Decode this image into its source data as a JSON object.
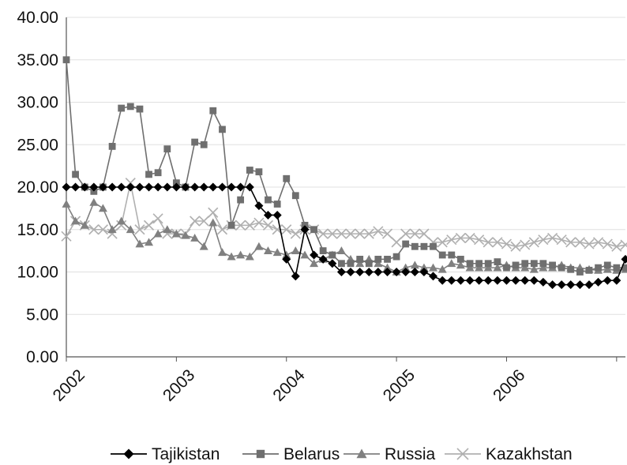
{
  "chart_data": {
    "type": "line",
    "title": "",
    "xlabel": "",
    "ylabel": "",
    "ylim": [
      0,
      40
    ],
    "y_ticks": [
      "0.00",
      "5.00",
      "10.00",
      "15.00",
      "20.00",
      "25.00",
      "30.00",
      "35.00",
      "40.00"
    ],
    "x_ticks": [
      "2002",
      "2003",
      "2004",
      "2005",
      "2006"
    ],
    "xlim": [
      2002.0,
      2007.08
    ],
    "grid": "horizontal",
    "legend_position": "bottom",
    "series": [
      {
        "name": "Tajikistan",
        "color": "#000000",
        "marker": "diamond",
        "x": [
          2002.0,
          2002.083,
          2002.167,
          2002.25,
          2002.333,
          2002.417,
          2002.5,
          2002.583,
          2002.667,
          2002.75,
          2002.833,
          2002.917,
          2003.0,
          2003.083,
          2003.167,
          2003.25,
          2003.333,
          2003.417,
          2003.5,
          2003.583,
          2003.667,
          2003.75,
          2003.833,
          2003.917,
          2004.0,
          2004.083,
          2004.167,
          2004.25,
          2004.333,
          2004.417,
          2004.5,
          2004.583,
          2004.667,
          2004.75,
          2004.833,
          2004.917,
          2005.0,
          2005.083,
          2005.167,
          2005.25,
          2005.333,
          2005.417,
          2005.5,
          2005.583,
          2005.667,
          2005.75,
          2005.833,
          2005.917,
          2006.0,
          2006.083,
          2006.167,
          2006.25,
          2006.333,
          2006.417,
          2006.5,
          2006.583,
          2006.667,
          2006.75,
          2006.833,
          2006.917,
          2007.0,
          2007.08
        ],
        "values": [
          20,
          20,
          20,
          20,
          20,
          20,
          20,
          20,
          20,
          20,
          20,
          20,
          20,
          20,
          20,
          20,
          20,
          20,
          20,
          20,
          20,
          17.8,
          16.7,
          16.7,
          11.5,
          9.5,
          15,
          12,
          11.5,
          11,
          10,
          10,
          10,
          10,
          10,
          10,
          10,
          10,
          10,
          10,
          9.5,
          9,
          9,
          9,
          9,
          9,
          9,
          9,
          9,
          9,
          9,
          9,
          8.8,
          8.5,
          8.5,
          8.5,
          8.5,
          8.5,
          8.8,
          9,
          9,
          11.5
        ]
      },
      {
        "name": "Belarus",
        "color": "#6f6f6f",
        "marker": "square",
        "x": [
          2002.0,
          2002.083,
          2002.167,
          2002.25,
          2002.333,
          2002.417,
          2002.5,
          2002.583,
          2002.667,
          2002.75,
          2002.833,
          2002.917,
          2003.0,
          2003.083,
          2003.167,
          2003.25,
          2003.333,
          2003.417,
          2003.5,
          2003.583,
          2003.667,
          2003.75,
          2003.833,
          2003.917,
          2004.0,
          2004.083,
          2004.167,
          2004.25,
          2004.333,
          2004.417,
          2004.5,
          2004.583,
          2004.667,
          2004.75,
          2004.833,
          2004.917,
          2005.0,
          2005.083,
          2005.167,
          2005.25,
          2005.333,
          2005.417,
          2005.5,
          2005.583,
          2005.667,
          2005.75,
          2005.833,
          2005.917,
          2006.0,
          2006.083,
          2006.167,
          2006.25,
          2006.333,
          2006.417,
          2006.5,
          2006.583,
          2006.667,
          2006.75,
          2006.833,
          2006.917,
          2007.0,
          2007.08
        ],
        "values": [
          35,
          21.5,
          20,
          19.5,
          20,
          24.8,
          29.3,
          29.5,
          29.2,
          21.5,
          21.7,
          24.5,
          20.5,
          20,
          25.3,
          25,
          29,
          26.8,
          15.5,
          18.5,
          22,
          21.8,
          18.5,
          18,
          21,
          19,
          15.5,
          15,
          12.5,
          12,
          11,
          11,
          11.5,
          11,
          11.5,
          11.5,
          11.8,
          13.3,
          13,
          13,
          13,
          12,
          12,
          11.5,
          11,
          11,
          11,
          11.2,
          10.5,
          10.8,
          11,
          11,
          11,
          10.8,
          10.5,
          10.3,
          10,
          10.2,
          10.5,
          10.8,
          10.5,
          10.5
        ]
      },
      {
        "name": "Russia",
        "color": "#808080",
        "marker": "triangle",
        "x": [
          2002.0,
          2002.083,
          2002.167,
          2002.25,
          2002.333,
          2002.417,
          2002.5,
          2002.583,
          2002.667,
          2002.75,
          2002.833,
          2002.917,
          2003.0,
          2003.083,
          2003.167,
          2003.25,
          2003.333,
          2003.417,
          2003.5,
          2003.583,
          2003.667,
          2003.75,
          2003.833,
          2003.917,
          2004.0,
          2004.083,
          2004.167,
          2004.25,
          2004.333,
          2004.417,
          2004.5,
          2004.583,
          2004.667,
          2004.75,
          2004.833,
          2004.917,
          2005.0,
          2005.083,
          2005.167,
          2005.25,
          2005.333,
          2005.417,
          2005.5,
          2005.583,
          2005.667,
          2005.75,
          2005.833,
          2005.917,
          2006.0,
          2006.083,
          2006.167,
          2006.25,
          2006.333,
          2006.417,
          2006.5,
          2006.583,
          2006.667,
          2006.75,
          2006.833,
          2006.917,
          2007.0,
          2007.08
        ],
        "values": [
          18,
          16,
          15.5,
          18.2,
          17.5,
          15,
          16,
          15,
          13.3,
          13.5,
          14.5,
          15,
          14.5,
          14.3,
          14,
          13,
          15.8,
          12.3,
          11.8,
          12,
          11.8,
          13,
          12.5,
          12.3,
          12,
          12.5,
          12,
          11,
          11.5,
          12,
          12.5,
          11.5,
          11,
          11.5,
          11,
          10.5,
          10,
          10.5,
          10.8,
          10.5,
          10.5,
          10.3,
          11,
          10.8,
          10.5,
          10.5,
          10.5,
          10.5,
          10.8,
          10.5,
          10.5,
          10.3,
          10.5,
          10.5,
          10.8,
          10.5,
          10.5,
          10.3,
          10.2,
          10.3,
          10.2,
          10.3
        ]
      },
      {
        "name": "Kazakhstan",
        "color": "#b0b0b0",
        "marker": "x",
        "x": [
          2002.0,
          2002.083,
          2002.167,
          2002.25,
          2002.333,
          2002.417,
          2002.5,
          2002.583,
          2002.667,
          2002.75,
          2002.833,
          2002.917,
          2003.0,
          2003.083,
          2003.167,
          2003.25,
          2003.333,
          2003.417,
          2003.5,
          2003.583,
          2003.667,
          2003.75,
          2003.833,
          2003.917,
          2004.0,
          2004.083,
          2004.167,
          2004.25,
          2004.333,
          2004.417,
          2004.5,
          2004.583,
          2004.667,
          2004.75,
          2004.833,
          2004.917,
          2005.0,
          2005.083,
          2005.167,
          2005.25,
          2005.333,
          2005.417,
          2005.5,
          2005.583,
          2005.667,
          2005.75,
          2005.833,
          2005.917,
          2006.0,
          2006.083,
          2006.167,
          2006.25,
          2006.333,
          2006.417,
          2006.5,
          2006.583,
          2006.667,
          2006.75,
          2006.833,
          2006.917,
          2007.0,
          2007.08
        ],
        "values": [
          14.2,
          16,
          15.5,
          15,
          15,
          14.5,
          15.5,
          20.5,
          15,
          15.5,
          16.3,
          14.5,
          14.5,
          14.5,
          16,
          16,
          17,
          15,
          15.5,
          15.5,
          15.5,
          15.8,
          15.5,
          15,
          15,
          14.5,
          15,
          15,
          14.5,
          14.5,
          14.5,
          14.5,
          14.5,
          14.5,
          14.8,
          14.5,
          13.5,
          14.5,
          14.5,
          14.5,
          13.5,
          13.5,
          13.8,
          14,
          14,
          13.8,
          13.5,
          13.5,
          13.3,
          13,
          13.2,
          13.5,
          13.8,
          14,
          13.8,
          13.5,
          13.5,
          13.3,
          13.5,
          13.3,
          13,
          13.2
        ]
      }
    ]
  }
}
